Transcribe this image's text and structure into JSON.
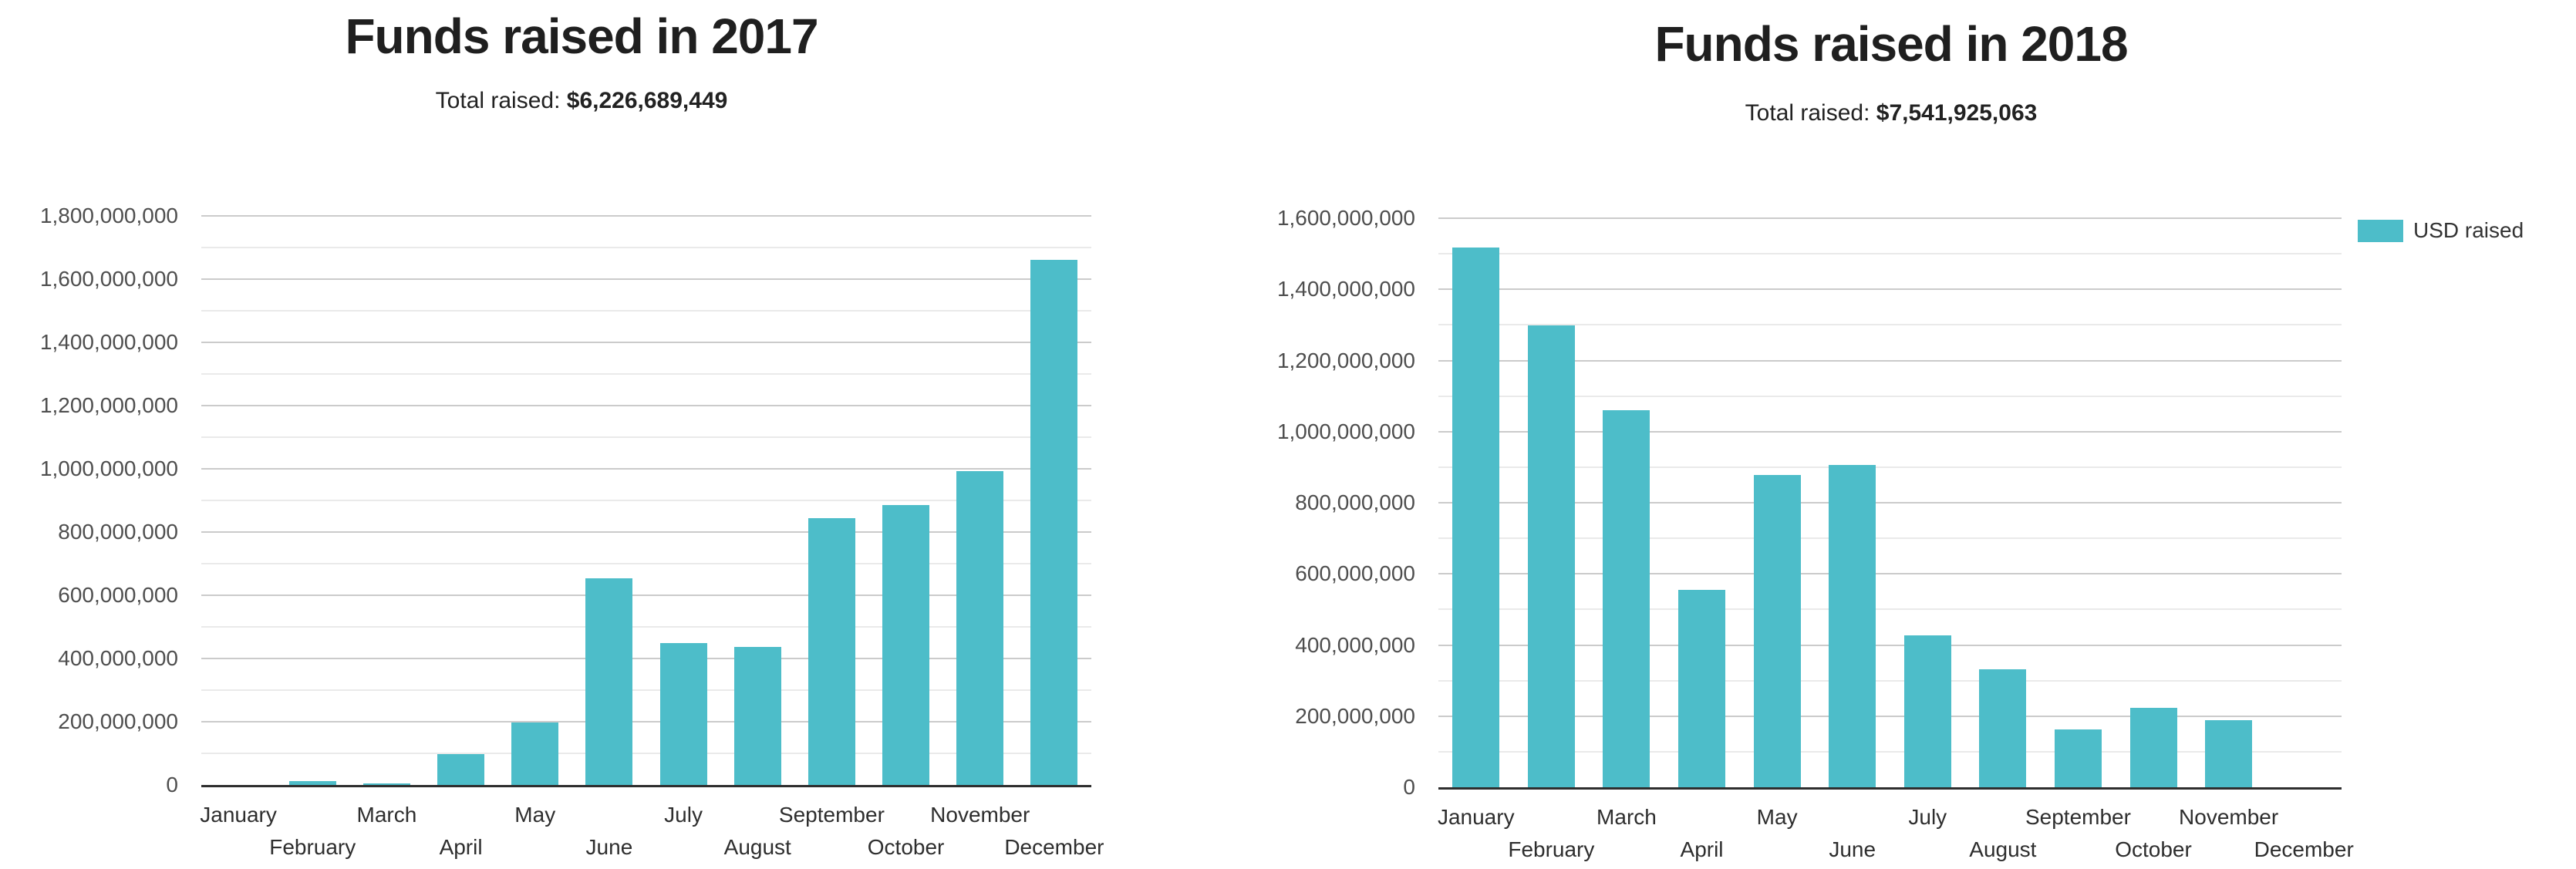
{
  "page": {
    "background": "#ffffff"
  },
  "colors": {
    "bar": "#4dbdc9",
    "grid_major": "#cbcbcb",
    "grid_minor": "#eaeaea",
    "axis_line": "#2e2e2e",
    "title_text": "#1f1f1f",
    "y_label_text": "#4e4e4e",
    "x_label_text": "#2e2e2e"
  },
  "legend": {
    "label": "USD raised",
    "swatch_color": "#4dbdc9",
    "position": "right"
  },
  "chart_data": [
    {
      "type": "bar",
      "title": "Funds raised in 2017",
      "subtitle_prefix": "Total raised: ",
      "subtitle_total": "$6,226,689,449",
      "xlabel": "",
      "ylabel": "",
      "categories": [
        "January",
        "February",
        "March",
        "April",
        "May",
        "June",
        "July",
        "August",
        "September",
        "October",
        "November",
        "December"
      ],
      "series": [
        {
          "name": "USD raised",
          "values": [
            1000000,
            11000000,
            4000000,
            98000000,
            197000000,
            654000000,
            449000000,
            437000000,
            845000000,
            886000000,
            992000000,
            1660000000
          ]
        }
      ],
      "ylim": [
        0,
        1800000000
      ],
      "y_major_step": 200000000,
      "y_minor_step": 100000000,
      "grid": true,
      "legend_position": "none"
    },
    {
      "type": "bar",
      "title": "Funds raised in 2018",
      "subtitle_prefix": "Total raised: ",
      "subtitle_total": "$7,541,925,063",
      "xlabel": "",
      "ylabel": "",
      "categories": [
        "January",
        "February",
        "March",
        "April",
        "May",
        "June",
        "July",
        "August",
        "September",
        "October",
        "November",
        "December"
      ],
      "series": [
        {
          "name": "USD raised",
          "values": [
            1518000000,
            1298000000,
            1060000000,
            556000000,
            877000000,
            907000000,
            428000000,
            331000000,
            162000000,
            223000000,
            189000000,
            0
          ]
        }
      ],
      "ylim": [
        0,
        1600000000
      ],
      "y_major_step": 200000000,
      "y_minor_step": 100000000,
      "grid": true,
      "legend_position": "right"
    }
  ]
}
